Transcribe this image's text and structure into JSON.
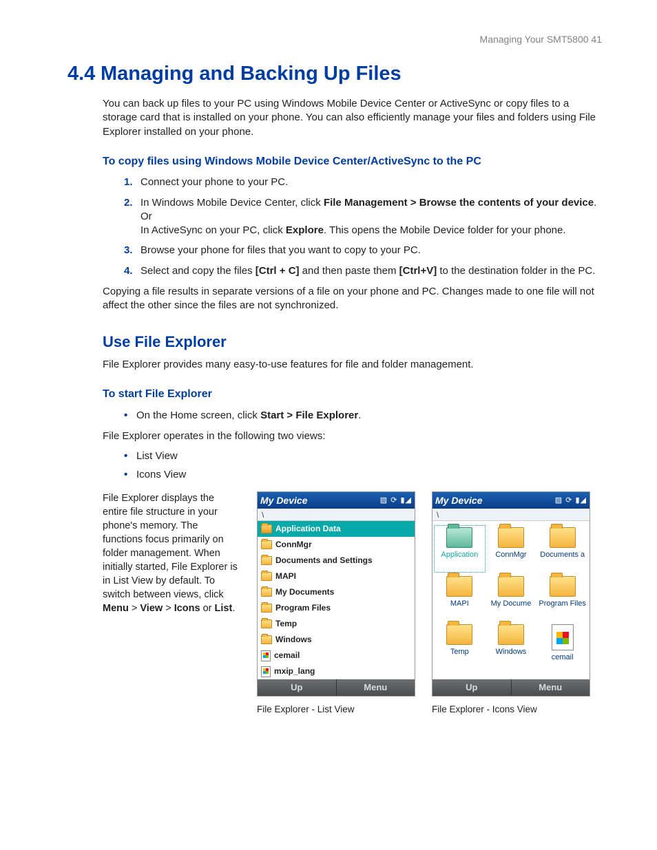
{
  "header": {
    "running_head": "Managing Your SMT5800  41"
  },
  "section": {
    "number": "4.4",
    "title": "Managing and Backing Up Files",
    "intro": "You can back up files to your PC using Windows Mobile Device Center or ActiveSync or copy files to a storage card that is installed on your phone. You can also efficiently manage your files and folders using File Explorer installed on your phone."
  },
  "copy_heading": "To copy files using Windows Mobile Device Center/ActiveSync to the PC",
  "steps": {
    "s1": "Connect your phone to your PC.",
    "s2_a": "In Windows Mobile Device Center, click ",
    "s2_b": "File Management > Browse the contents of your device",
    "s2_c": ". Or",
    "s2_d": "In ActiveSync on your PC, click ",
    "s2_e": "Explore",
    "s2_f": ". This opens the Mobile Device folder for your phone.",
    "s3": "Browse your phone for files that you want to copy to your PC.",
    "s4_a": "Select and copy the files ",
    "s4_b": "[Ctrl + C]",
    "s4_c": " and then paste them ",
    "s4_d": "[Ctrl+V]",
    "s4_e": " to the destination folder in the PC."
  },
  "copy_note": "Copying a file results in separate versions of a file on your phone and PC. Changes made to one file will not affect the other since the files are not synchronized.",
  "ufe": {
    "heading": "Use File Explorer",
    "intro": "File Explorer provides many easy-to-use features for file and folder management.",
    "start_heading": "To start File Explorer",
    "start_a": "On the Home screen, click ",
    "start_b": "Start > File Explorer",
    "start_c": ".",
    "operates": "File Explorer operates in the following two views:",
    "view1": "List View",
    "view2": "Icons View",
    "desc_a": "File Explorer displays the entire file structure in your phone's memory. The functions focus primarily on folder management. When initially started, File Explorer is in List View by default. To switch between views, click ",
    "desc_b": "Menu",
    "desc_c": " > ",
    "desc_d": "View",
    "desc_e": " > ",
    "desc_f": "Icons",
    "desc_g": " or ",
    "desc_h": "List",
    "desc_i": "."
  },
  "screens": {
    "title": "My Device",
    "path": "\\",
    "softkey_left": "Up",
    "softkey_right": "Menu",
    "list_items": [
      {
        "label": "Application Data",
        "type": "folder",
        "selected": true
      },
      {
        "label": "ConnMgr",
        "type": "folder"
      },
      {
        "label": "Documents and Settings",
        "type": "folder"
      },
      {
        "label": "MAPI",
        "type": "folder"
      },
      {
        "label": "My Documents",
        "type": "folder"
      },
      {
        "label": "Program Files",
        "type": "folder"
      },
      {
        "label": "Temp",
        "type": "folder"
      },
      {
        "label": "Windows",
        "type": "folder"
      },
      {
        "label": "cemail",
        "type": "file"
      },
      {
        "label": "mxip_lang",
        "type": "file"
      }
    ],
    "icon_items": [
      {
        "label": "Application",
        "type": "folder-open",
        "selected": true
      },
      {
        "label": "ConnMgr",
        "type": "folder"
      },
      {
        "label": "Documents a",
        "type": "folder"
      },
      {
        "label": "MAPI",
        "type": "folder"
      },
      {
        "label": "My Docume",
        "type": "folder"
      },
      {
        "label": "Program Files",
        "type": "folder"
      },
      {
        "label": "Temp",
        "type": "folder"
      },
      {
        "label": "Windows",
        "type": "folder"
      },
      {
        "label": "cemail",
        "type": "file"
      }
    ],
    "caption_list": "File Explorer - List View",
    "caption_icons": "File Explorer - Icons View"
  }
}
